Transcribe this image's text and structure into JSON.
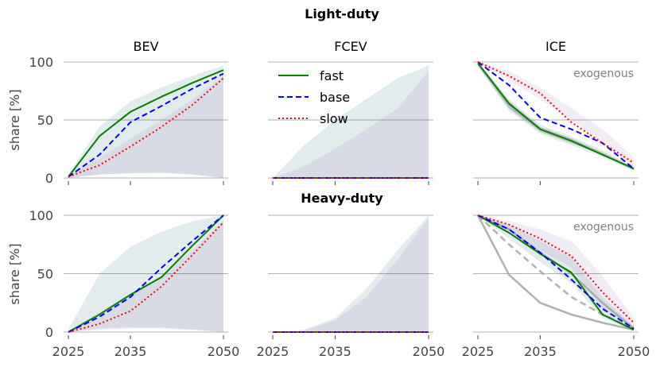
{
  "figure": {
    "section_titles": [
      "Light-duty",
      "Heavy-duty"
    ],
    "ylabel": "share [%]",
    "annotation": "exogenous"
  },
  "colors": {
    "fast": "#008000",
    "base": "#0000ff",
    "slow": "#ff0000",
    "exogenous": "#9e9e9e",
    "grid": "#b0b0b0"
  },
  "chart_data": [
    {
      "type": "line",
      "row": 0,
      "col": 0,
      "title": "BEV",
      "x": [
        2025,
        2030,
        2035,
        2040,
        2045,
        2050
      ],
      "ylim": [
        0,
        100
      ],
      "yticks": [
        0,
        50,
        100
      ],
      "xticks": [
        2025,
        2035,
        2050
      ],
      "series": [
        {
          "name": "fast",
          "values": [
            1,
            36,
            57,
            70,
            82,
            93
          ]
        },
        {
          "name": "base",
          "values": [
            1,
            20,
            48,
            62,
            77,
            90
          ]
        },
        {
          "name": "slow",
          "values": [
            1,
            11,
            27,
            44,
            63,
            86
          ]
        }
      ],
      "band_fast": {
        "lower": [
          0,
          3,
          4,
          4,
          3,
          0
        ],
        "upper": [
          3,
          44,
          66,
          78,
          88,
          97
        ]
      },
      "band_slow": {
        "lower": [
          0,
          3,
          4,
          5,
          3,
          0
        ],
        "upper": [
          2,
          17,
          34,
          50,
          68,
          88
        ]
      }
    },
    {
      "type": "line",
      "row": 0,
      "col": 1,
      "title": "FCEV",
      "x": [
        2025,
        2030,
        2035,
        2040,
        2045,
        2050
      ],
      "ylim": [
        0,
        100
      ],
      "yticks": [
        0,
        50,
        100
      ],
      "xticks": [
        2025,
        2035,
        2050
      ],
      "series": [
        {
          "name": "fast",
          "values": [
            0,
            0,
            0,
            0,
            0,
            0
          ]
        },
        {
          "name": "base",
          "values": [
            0,
            0,
            0,
            0,
            0,
            0
          ]
        },
        {
          "name": "slow",
          "values": [
            0,
            0,
            0,
            0,
            0,
            0
          ]
        }
      ],
      "legend": [
        "fast",
        "base",
        "slow"
      ],
      "band_fast": {
        "lower": [
          0,
          0,
          0,
          0,
          0,
          0
        ],
        "upper": [
          0,
          28,
          50,
          68,
          86,
          97
        ]
      },
      "band_slow": {
        "lower": [
          0,
          0,
          0,
          0,
          0,
          0
        ],
        "upper": [
          0,
          10,
          25,
          42,
          60,
          92
        ]
      }
    },
    {
      "type": "line",
      "row": 0,
      "col": 2,
      "title": "ICE",
      "x": [
        2025,
        2030,
        2035,
        2040,
        2045,
        2050
      ],
      "ylim": [
        0,
        100
      ],
      "yticks": [
        0,
        50,
        100
      ],
      "xticks": [
        2025,
        2035,
        2050
      ],
      "annotation": true,
      "series": [
        {
          "name": "fast",
          "values": [
            99,
            64,
            42,
            32,
            20,
            8
          ]
        },
        {
          "name": "base",
          "values": [
            100,
            80,
            52,
            42,
            30,
            8
          ]
        },
        {
          "name": "slow",
          "values": [
            100,
            88,
            73,
            48,
            30,
            13
          ]
        }
      ],
      "exogenous": {
        "lower": [
          97,
          60,
          40,
          30,
          20,
          7
        ],
        "upper": [
          100,
          66,
          44,
          34,
          22,
          9
        ]
      },
      "band_fast": {
        "lower": [
          96,
          58,
          38,
          28,
          18,
          6
        ],
        "upper": [
          100,
          68,
          46,
          36,
          24,
          10
        ]
      },
      "band_slow": {
        "lower": [
          98,
          84,
          68,
          50,
          30,
          10
        ],
        "upper": [
          100,
          92,
          78,
          60,
          42,
          18
        ]
      }
    },
    {
      "type": "line",
      "row": 1,
      "col": 0,
      "x": [
        2025,
        2030,
        2035,
        2040,
        2045,
        2050
      ],
      "ylim": [
        0,
        100
      ],
      "yticks": [
        0,
        50,
        100
      ],
      "xticks": [
        2025,
        2035,
        2050
      ],
      "series": [
        {
          "name": "fast",
          "values": [
            0,
            15,
            32,
            47,
            74,
            100
          ]
        },
        {
          "name": "base",
          "values": [
            0,
            13,
            30,
            55,
            78,
            100
          ]
        },
        {
          "name": "slow",
          "values": [
            0,
            7,
            18,
            39,
            66,
            94
          ]
        }
      ],
      "band_fast": {
        "lower": [
          0,
          3,
          4,
          3,
          2,
          0
        ],
        "upper": [
          2,
          50,
          73,
          86,
          95,
          100
        ]
      },
      "band_slow": {
        "lower": [
          0,
          2,
          3,
          4,
          2,
          0
        ],
        "upper": [
          1,
          17,
          33,
          48,
          70,
          96
        ]
      }
    },
    {
      "type": "line",
      "row": 1,
      "col": 1,
      "x": [
        2025,
        2030,
        2035,
        2040,
        2045,
        2050
      ],
      "ylim": [
        0,
        100
      ],
      "yticks": [
        0,
        50,
        100
      ],
      "xticks": [
        2025,
        2035,
        2050
      ],
      "series": [
        {
          "name": "fast",
          "values": [
            0,
            0,
            0,
            0,
            0,
            0
          ]
        },
        {
          "name": "base",
          "values": [
            0,
            0,
            0,
            0,
            0,
            0
          ]
        },
        {
          "name": "slow",
          "values": [
            0,
            0,
            0,
            0,
            0,
            0
          ]
        }
      ],
      "band_fast": {
        "lower": [
          0,
          0,
          0,
          0,
          0,
          0
        ],
        "upper": [
          0,
          2,
          12,
          37,
          70,
          100
        ]
      },
      "band_slow": {
        "lower": [
          0,
          0,
          0,
          0,
          0,
          0
        ],
        "upper": [
          0,
          1,
          10,
          30,
          62,
          98
        ]
      }
    },
    {
      "type": "line",
      "row": 1,
      "col": 2,
      "x": [
        2025,
        2030,
        2035,
        2040,
        2045,
        2050
      ],
      "ylim": [
        0,
        100
      ],
      "yticks": [
        0,
        50,
        100
      ],
      "xticks": [
        2025,
        2035,
        2050
      ],
      "annotation": true,
      "series": [
        {
          "name": "fast",
          "values": [
            100,
            85,
            67,
            51,
            15,
            2
          ]
        },
        {
          "name": "base",
          "values": [
            100,
            88,
            68,
            45,
            20,
            3
          ]
        },
        {
          "name": "slow",
          "values": [
            100,
            92,
            80,
            65,
            34,
            8
          ]
        }
      ],
      "exogenous_upper": [
        100,
        88,
        68,
        50,
        25,
        3
      ],
      "exogenous_mid": [
        100,
        75,
        52,
        30,
        15,
        3
      ],
      "exogenous_lower": [
        100,
        49,
        25,
        15,
        8,
        2
      ],
      "band_fast": {
        "lower": [
          100,
          80,
          60,
          42,
          12,
          1
        ],
        "upper": [
          100,
          92,
          78,
          64,
          30,
          5
        ]
      },
      "band_slow": {
        "lower": [
          100,
          86,
          70,
          55,
          20,
          3
        ],
        "upper": [
          100,
          95,
          88,
          78,
          48,
          12
        ]
      }
    }
  ]
}
